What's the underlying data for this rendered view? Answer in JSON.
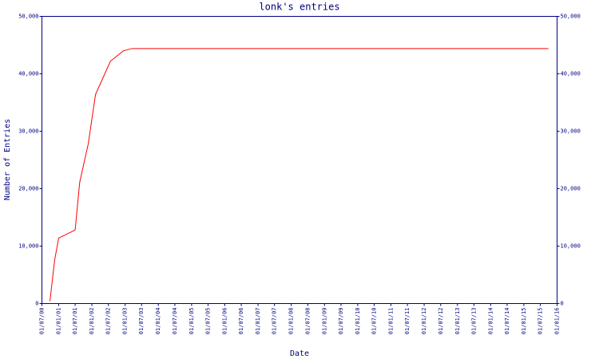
{
  "chart_data": {
    "type": "line",
    "title": "lonk's entries",
    "x_label": "Date",
    "y_label": "Number of Entries",
    "xticks": [
      "01/07/00",
      "01/01/01",
      "01/07/01",
      "01/01/02",
      "01/07/02",
      "01/01/03",
      "01/07/03",
      "01/01/04",
      "01/07/04",
      "01/01/05",
      "01/07/05",
      "01/01/06",
      "01/07/06",
      "01/01/07",
      "01/07/07",
      "01/01/08",
      "01/07/08",
      "01/01/09",
      "01/07/09",
      "01/01/10",
      "01/07/10",
      "01/01/11",
      "01/07/11",
      "01/01/12",
      "01/07/12",
      "01/01/13",
      "01/07/13",
      "01/01/14",
      "01/07/14",
      "01/01/15",
      "01/07/15",
      "01/01/16"
    ],
    "xlim": [
      "01/07/00",
      "01/01/16"
    ],
    "series": [
      {
        "name": "entries",
        "color": "#ff0000",
        "x": [
          "27/09/00",
          "18/11/00",
          "01/01/01",
          "01/07/01",
          "20/08/01",
          "22/11/01",
          "10/02/02",
          "24/07/02",
          "14/12/02",
          "18/03/03",
          "27/09/15"
        ],
        "values": [
          400,
          7600,
          11400,
          12800,
          21100,
          27800,
          36400,
          42200,
          44000,
          44400,
          44400
        ]
      }
    ],
    "ylim": [
      0,
      50000
    ],
    "yticks": [
      0,
      {
        "value": 10000,
        "label": "10,000"
      },
      {
        "value": 20000,
        "label": "20,000"
      },
      {
        "value": 30000,
        "label": "30,000"
      },
      {
        "value": 40000,
        "label": "40,000"
      },
      {
        "value": 50000,
        "label": "50,000"
      }
    ]
  }
}
